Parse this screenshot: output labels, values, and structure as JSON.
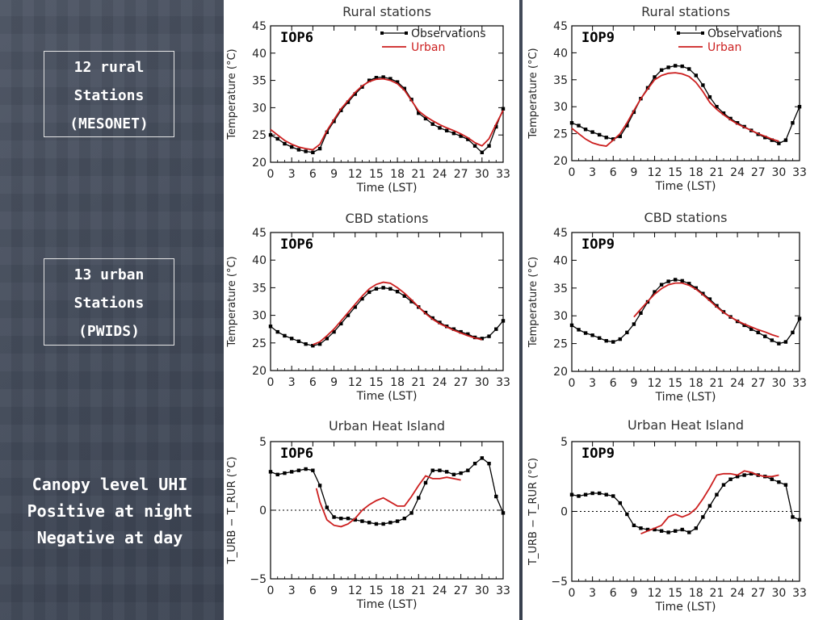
{
  "side_labels": {
    "rural_box": [
      "12 rural",
      "Stations",
      "(MESONET)"
    ],
    "urban_box": [
      "13 urban",
      "Stations",
      "(PWIDS)"
    ],
    "uhi_caption": [
      "Canopy level UHI",
      "Positive at night",
      "Negative at day"
    ]
  },
  "colors": {
    "observations": "#000000",
    "urban": "#cc1f1f",
    "background": "#3f4756",
    "panel": "#ffffff"
  },
  "chart_data": [
    {
      "type": "line",
      "title": "Rural stations",
      "tag": "IOP6",
      "xlabel": "Time (LST)",
      "ylabel": "Temperature (°C)",
      "xlim": [
        0,
        33
      ],
      "ylim": [
        20,
        45
      ],
      "xticks": [
        "0",
        "3",
        "6",
        "9",
        "12",
        "15",
        "18",
        "21",
        "24",
        "27",
        "30",
        "33"
      ],
      "yticks": [
        "20",
        "25",
        "30",
        "35",
        "40",
        "45"
      ],
      "legend": [
        "Observations",
        "Urban"
      ],
      "legend_position": "top-right",
      "series": [
        {
          "name": "Observations",
          "x": [
            0,
            1,
            2,
            3,
            4,
            5,
            6,
            7,
            8,
            9,
            10,
            11,
            12,
            13,
            14,
            15,
            16,
            17,
            18,
            19,
            20,
            21,
            22,
            23,
            24,
            25,
            26,
            27,
            28,
            29,
            30,
            31,
            32,
            33
          ],
          "values": [
            25.0,
            24.3,
            23.4,
            22.8,
            22.3,
            22.0,
            21.8,
            22.5,
            25.5,
            27.5,
            29.5,
            31.0,
            32.5,
            33.8,
            35.0,
            35.5,
            35.6,
            35.3,
            34.7,
            33.5,
            31.5,
            29.0,
            28.0,
            27.0,
            26.3,
            25.8,
            25.3,
            24.8,
            24.2,
            23.0,
            21.8,
            23.0,
            26.5,
            29.8
          ]
        },
        {
          "name": "Urban",
          "x": [
            0,
            1,
            2,
            3,
            4,
            5,
            6,
            7,
            8,
            9,
            10,
            11,
            12,
            13,
            14,
            15,
            16,
            17,
            18,
            19,
            20,
            21,
            22,
            23,
            24,
            25,
            26,
            27,
            28,
            29,
            30,
            31,
            32,
            33
          ],
          "values": [
            26.0,
            25.0,
            24.0,
            23.3,
            22.8,
            22.5,
            22.3,
            23.3,
            25.8,
            27.8,
            29.8,
            31.3,
            32.8,
            34.0,
            34.8,
            35.2,
            35.3,
            35.0,
            34.4,
            33.2,
            31.3,
            29.4,
            28.4,
            27.6,
            26.9,
            26.3,
            25.8,
            25.2,
            24.5,
            23.6,
            23.0,
            24.3,
            27.0,
            29.5
          ]
        }
      ]
    },
    {
      "type": "line",
      "title": "Rural stations",
      "tag": "IOP9",
      "xlabel": "Time (LST)",
      "ylabel": "Temperature (°C)",
      "xlim": [
        0,
        33
      ],
      "ylim": [
        20,
        45
      ],
      "xticks": [
        "0",
        "3",
        "6",
        "9",
        "12",
        "15",
        "18",
        "21",
        "24",
        "27",
        "30",
        "33"
      ],
      "yticks": [
        "20",
        "25",
        "30",
        "35",
        "40",
        "45"
      ],
      "legend": [
        "Observations",
        "Urban"
      ],
      "legend_position": "top-right",
      "series": [
        {
          "name": "Observations",
          "x": [
            0,
            1,
            2,
            3,
            4,
            5,
            6,
            7,
            8,
            9,
            10,
            11,
            12,
            13,
            14,
            15,
            16,
            17,
            18,
            19,
            20,
            21,
            22,
            23,
            24,
            25,
            26,
            27,
            28,
            29,
            30,
            31,
            32,
            33
          ],
          "values": [
            27.0,
            26.5,
            25.8,
            25.3,
            24.8,
            24.3,
            24.0,
            24.5,
            26.5,
            29.0,
            31.5,
            33.5,
            35.5,
            36.8,
            37.3,
            37.6,
            37.5,
            37.0,
            35.8,
            34.0,
            31.8,
            30.0,
            28.8,
            27.8,
            27.0,
            26.3,
            25.6,
            24.9,
            24.3,
            23.8,
            23.2,
            23.8,
            27.0,
            30.0
          ]
        },
        {
          "name": "Urban",
          "x": [
            0,
            1,
            2,
            3,
            4,
            5,
            6,
            7,
            8,
            9,
            10,
            11,
            12,
            13,
            14,
            15,
            16,
            17,
            18,
            19,
            20,
            21,
            22,
            23,
            24,
            25,
            26,
            27,
            28,
            29,
            30
          ],
          "values": [
            26.0,
            25.0,
            24.0,
            23.3,
            22.9,
            22.7,
            23.8,
            25.0,
            27.0,
            29.3,
            31.5,
            33.3,
            35.0,
            35.8,
            36.2,
            36.3,
            36.1,
            35.6,
            34.5,
            32.8,
            30.8,
            29.5,
            28.5,
            27.6,
            26.8,
            26.2,
            25.6,
            25.0,
            24.5,
            24.0,
            23.6
          ]
        }
      ]
    },
    {
      "type": "line",
      "title": "CBD stations",
      "tag": "IOP6",
      "xlabel": "Time (LST)",
      "ylabel": "Temperature (°C)",
      "xlim": [
        0,
        33
      ],
      "ylim": [
        20,
        45
      ],
      "xticks": [
        "0",
        "3",
        "6",
        "9",
        "12",
        "15",
        "18",
        "21",
        "24",
        "27",
        "30",
        "33"
      ],
      "yticks": [
        "20",
        "25",
        "30",
        "35",
        "40",
        "45"
      ],
      "series": [
        {
          "name": "Observations",
          "x": [
            0,
            1,
            2,
            3,
            4,
            5,
            6,
            7,
            8,
            9,
            10,
            11,
            12,
            13,
            14,
            15,
            16,
            17,
            18,
            19,
            20,
            21,
            22,
            23,
            24,
            25,
            26,
            27,
            28,
            29,
            30,
            31,
            32,
            33
          ],
          "values": [
            28.0,
            27.0,
            26.3,
            25.8,
            25.3,
            24.8,
            24.5,
            24.8,
            25.8,
            27.0,
            28.5,
            30.0,
            31.5,
            33.0,
            34.2,
            34.8,
            35.0,
            34.8,
            34.3,
            33.5,
            32.5,
            31.5,
            30.5,
            29.5,
            28.7,
            28.0,
            27.5,
            27.0,
            26.6,
            26.0,
            25.8,
            26.2,
            27.5,
            29.0
          ]
        },
        {
          "name": "Urban",
          "x": [
            6,
            7,
            8,
            9,
            10,
            11,
            12,
            13,
            14,
            15,
            16,
            17,
            18,
            19,
            20,
            21,
            22,
            23,
            24,
            25,
            26,
            27,
            28,
            29,
            30
          ],
          "values": [
            24.7,
            25.2,
            26.3,
            27.5,
            29.0,
            30.5,
            32.0,
            33.5,
            34.8,
            35.6,
            36.0,
            35.8,
            35.0,
            34.0,
            32.8,
            31.5,
            30.3,
            29.3,
            28.5,
            27.9,
            27.3,
            26.8,
            26.3,
            25.9,
            25.6
          ]
        }
      ]
    },
    {
      "type": "line",
      "title": "CBD stations",
      "tag": "IOP9",
      "xlabel": "Time (LST)",
      "ylabel": "Temperature (°C)",
      "xlim": [
        0,
        33
      ],
      "ylim": [
        20,
        45
      ],
      "xticks": [
        "0",
        "3",
        "6",
        "9",
        "12",
        "15",
        "18",
        "21",
        "24",
        "27",
        "30",
        "33"
      ],
      "yticks": [
        "20",
        "25",
        "30",
        "35",
        "40",
        "45"
      ],
      "series": [
        {
          "name": "Observations",
          "x": [
            0,
            1,
            2,
            3,
            4,
            5,
            6,
            7,
            8,
            9,
            10,
            11,
            12,
            13,
            14,
            15,
            16,
            17,
            18,
            19,
            20,
            21,
            22,
            23,
            24,
            25,
            26,
            27,
            28,
            29,
            30,
            31,
            32,
            33
          ],
          "values": [
            28.3,
            27.5,
            26.9,
            26.5,
            26.0,
            25.5,
            25.3,
            25.8,
            27.0,
            28.5,
            30.5,
            32.5,
            34.3,
            35.6,
            36.2,
            36.5,
            36.3,
            35.8,
            35.0,
            34.0,
            33.0,
            31.8,
            30.7,
            29.8,
            29.0,
            28.3,
            27.6,
            27.0,
            26.3,
            25.6,
            25.0,
            25.3,
            27.0,
            29.5
          ]
        },
        {
          "name": "Urban",
          "x": [
            9,
            10,
            11,
            12,
            13,
            14,
            15,
            16,
            17,
            18,
            19,
            20,
            21,
            22,
            23,
            24,
            25,
            26,
            27,
            28,
            29,
            30
          ],
          "values": [
            29.8,
            31.2,
            32.6,
            33.9,
            34.9,
            35.6,
            35.9,
            35.9,
            35.5,
            34.8,
            33.8,
            32.7,
            31.6,
            30.6,
            29.8,
            29.1,
            28.5,
            28.0,
            27.5,
            27.1,
            26.6,
            26.2
          ]
        }
      ]
    },
    {
      "type": "line",
      "title": "Urban Heat Island",
      "tag": "IOP6",
      "xlabel": "Time (LST)",
      "ylabel": "T_URB − T_RUR (°C)",
      "xlim": [
        0,
        33
      ],
      "ylim": [
        -5,
        5
      ],
      "xticks": [
        "0",
        "3",
        "6",
        "9",
        "12",
        "15",
        "18",
        "21",
        "24",
        "27",
        "30",
        "33"
      ],
      "yticks": [
        "-5",
        "0",
        "5"
      ],
      "zero_line": "dotted",
      "series": [
        {
          "name": "Observations",
          "x": [
            0,
            1,
            2,
            3,
            4,
            5,
            6,
            7,
            8,
            9,
            10,
            11,
            12,
            13,
            14,
            15,
            16,
            17,
            18,
            19,
            20,
            21,
            22,
            23,
            24,
            25,
            26,
            27,
            28,
            29,
            30,
            31,
            32,
            33
          ],
          "values": [
            2.8,
            2.6,
            2.7,
            2.8,
            2.9,
            3.0,
            2.9,
            1.8,
            0.2,
            -0.5,
            -0.6,
            -0.6,
            -0.7,
            -0.8,
            -0.9,
            -1.0,
            -1.0,
            -0.9,
            -0.8,
            -0.6,
            -0.2,
            0.9,
            2.0,
            2.9,
            2.9,
            2.8,
            2.6,
            2.7,
            2.9,
            3.4,
            3.8,
            3.4,
            1.0,
            -0.2
          ]
        },
        {
          "name": "Urban",
          "x": [
            6.5,
            7,
            8,
            9,
            10,
            11,
            12,
            13,
            14,
            15,
            16,
            17,
            18,
            19,
            20,
            21,
            22,
            23,
            24,
            25,
            26,
            27
          ],
          "values": [
            1.6,
            0.6,
            -0.7,
            -1.1,
            -1.2,
            -1.0,
            -0.6,
            0.0,
            0.4,
            0.7,
            0.9,
            0.6,
            0.3,
            0.3,
            1.0,
            1.8,
            2.5,
            2.3,
            2.3,
            2.4,
            2.3,
            2.2
          ]
        }
      ]
    },
    {
      "type": "line",
      "title": "Urban Heat Island",
      "tag": "IOP9",
      "xlabel": "Time (LST)",
      "ylabel": "T_URB − T_RUR (°C)",
      "xlim": [
        0,
        33
      ],
      "ylim": [
        -5,
        5
      ],
      "xticks": [
        "0",
        "3",
        "6",
        "9",
        "12",
        "15",
        "18",
        "21",
        "24",
        "27",
        "30",
        "33"
      ],
      "yticks": [
        "-5",
        "0",
        "5"
      ],
      "zero_line": "dotted",
      "series": [
        {
          "name": "Observations",
          "x": [
            0,
            1,
            2,
            3,
            4,
            5,
            6,
            7,
            8,
            9,
            10,
            11,
            12,
            13,
            14,
            15,
            16,
            17,
            18,
            19,
            20,
            21,
            22,
            23,
            24,
            25,
            26,
            27,
            28,
            29,
            30,
            31,
            32,
            33
          ],
          "values": [
            1.2,
            1.1,
            1.2,
            1.3,
            1.3,
            1.2,
            1.1,
            0.6,
            -0.2,
            -1.0,
            -1.2,
            -1.3,
            -1.3,
            -1.4,
            -1.5,
            -1.4,
            -1.3,
            -1.5,
            -1.2,
            -0.4,
            0.4,
            1.2,
            1.9,
            2.3,
            2.5,
            2.6,
            2.7,
            2.6,
            2.5,
            2.3,
            2.1,
            1.9,
            -0.4,
            -0.6
          ]
        },
        {
          "name": "Urban",
          "x": [
            10,
            11,
            12,
            13,
            14,
            15,
            16,
            17,
            18,
            19,
            20,
            21,
            22,
            23,
            24,
            25,
            26,
            27,
            28,
            29,
            30
          ],
          "values": [
            -1.6,
            -1.4,
            -1.2,
            -1.0,
            -0.4,
            -0.2,
            -0.4,
            -0.2,
            0.2,
            0.9,
            1.7,
            2.6,
            2.7,
            2.7,
            2.6,
            2.9,
            2.8,
            2.6,
            2.5,
            2.5,
            2.6
          ]
        }
      ]
    }
  ]
}
